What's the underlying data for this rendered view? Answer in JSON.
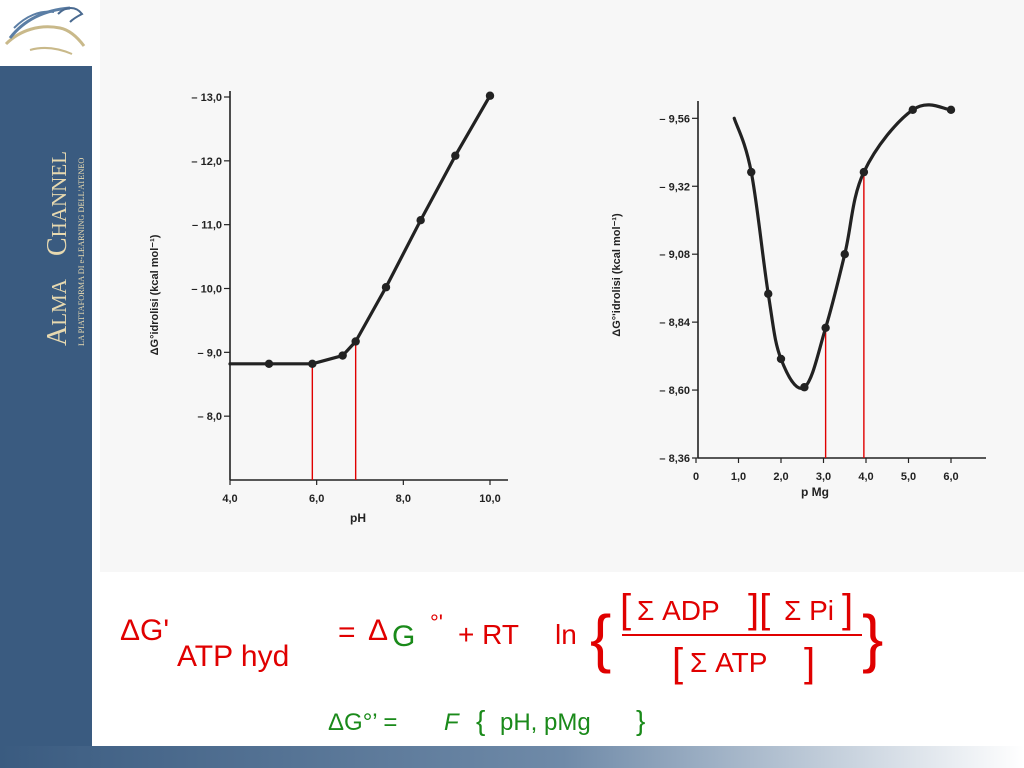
{
  "brand": {
    "name_first": "A",
    "name_rest": "LMA",
    "channel_first": "C",
    "channel_rest": "HANNEL",
    "tagline": "LA PIATTAFORMA DI e-LEARNING DELL'ATENEO",
    "colors": {
      "sidebar": "#3a5b80",
      "wordmark": "#e7d9b0"
    }
  },
  "chart_data": [
    {
      "type": "line",
      "xlabel": "pH",
      "ylabel": "ΔG°idrolisi (kcal mol⁻¹)",
      "xlim": [
        4,
        10
      ],
      "ylim": [
        -7.0,
        -13.0
      ],
      "x_ticks": [
        "4,0",
        "6,0",
        "8,0",
        "10,0"
      ],
      "y_ticks": [
        "– 8,0",
        "– 9,0",
        "– 10,0",
        "– 11,0",
        "– 12,0",
        "– 13,0"
      ],
      "series": [
        {
          "x": [
            4.0,
            4.9,
            5.9,
            6.6,
            6.9,
            7.6,
            8.4,
            9.2,
            10.0
          ],
          "y": [
            -8.82,
            -8.82,
            -8.82,
            -8.95,
            -9.17,
            -10.02,
            -11.07,
            -12.08,
            -13.02
          ],
          "markers": [
            4.9,
            5.9,
            6.6,
            6.9,
            7.6,
            8.4,
            9.2,
            10.0
          ]
        }
      ],
      "reference_lines": [
        5.9,
        6.9
      ],
      "grid": false
    },
    {
      "type": "line",
      "xlabel": "p Mg",
      "ylabel": "ΔG°'idrolisi (kcal mol⁻¹)",
      "xlim": [
        0,
        6.4
      ],
      "ylim": [
        8.36,
        9.6
      ],
      "x_ticks": [
        "0",
        "1,0",
        "2,0",
        "3,0",
        "4,0",
        "5,0",
        "6,0"
      ],
      "y_ticks": [
        "– 8,36",
        "– 8,60",
        "– 8,84",
        "– 9,08",
        "– 9,32",
        "– 9,56"
      ],
      "series": [
        {
          "x": [
            0.9,
            1.3,
            1.7,
            2.0,
            2.55,
            3.05,
            3.5,
            3.95,
            5.1,
            6.0
          ],
          "y": [
            9.56,
            9.37,
            8.94,
            8.71,
            8.61,
            8.82,
            9.08,
            9.37,
            9.59,
            9.59
          ],
          "markers": [
            1.3,
            1.7,
            2.0,
            2.55,
            3.05,
            3.5,
            3.95,
            5.1,
            6.0
          ]
        }
      ],
      "reference_lines": [
        3.05,
        3.95
      ],
      "grid": false
    }
  ],
  "formula": {
    "delta": "Δ",
    "G_prime": "G'",
    "sub": "ATP  hyd",
    "equals": "=",
    "g_std": "G",
    "std_sup": "°'",
    "plus_rt": "+ RT",
    "ln": "ln",
    "num_adp": "Σ ADP",
    "num_pi": "Σ Pi",
    "den_atp": "Σ ATP",
    "line2_lhs": "ΔG°’ =",
    "line2_func": "F",
    "line2_args": "pH, pMg"
  },
  "colors": {
    "red": "#e00000",
    "green": "#1a8a1a",
    "plot": "#222222",
    "refline": "#e00000"
  }
}
